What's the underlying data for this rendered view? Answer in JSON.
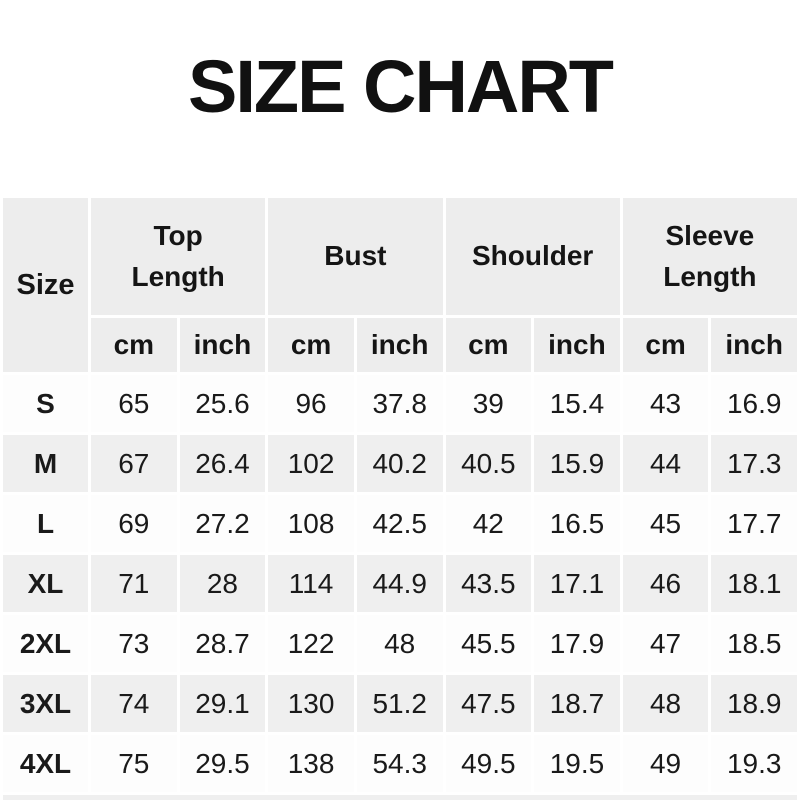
{
  "page": {
    "title": "SIZE CHART"
  },
  "colors": {
    "page-bg": "#ffffff",
    "title-color": "#111111",
    "header-bg": "#ededed",
    "row-light-bg": "#fdfdfd",
    "row-alt-bg": "#efefef",
    "divider": "#ffffff",
    "text": "#1a1a1a"
  },
  "table": {
    "size_column_label": "Size",
    "unit_labels": [
      "cm",
      "inch"
    ],
    "groups": [
      {
        "id": "top-length",
        "label": "Top Length"
      },
      {
        "id": "bust",
        "label": "Bust"
      },
      {
        "id": "shoulder",
        "label": "Shoulder"
      },
      {
        "id": "sleeve-length",
        "label": "Sleeve Length"
      }
    ],
    "rows": [
      {
        "size": "S",
        "values": [
          "65",
          "25.6",
          "96",
          "37.8",
          "39",
          "15.4",
          "43",
          "16.9"
        ]
      },
      {
        "size": "M",
        "values": [
          "67",
          "26.4",
          "102",
          "40.2",
          "40.5",
          "15.9",
          "44",
          "17.3"
        ]
      },
      {
        "size": "L",
        "values": [
          "69",
          "27.2",
          "108",
          "42.5",
          "42",
          "16.5",
          "45",
          "17.7"
        ]
      },
      {
        "size": "XL",
        "values": [
          "71",
          "28",
          "114",
          "44.9",
          "43.5",
          "17.1",
          "46",
          "18.1"
        ]
      },
      {
        "size": "2XL",
        "values": [
          "73",
          "28.7",
          "122",
          "48",
          "45.5",
          "17.9",
          "47",
          "18.5"
        ]
      },
      {
        "size": "3XL",
        "values": [
          "74",
          "29.1",
          "130",
          "51.2",
          "47.5",
          "18.7",
          "48",
          "18.9"
        ]
      },
      {
        "size": "4XL",
        "values": [
          "75",
          "29.5",
          "138",
          "54.3",
          "49.5",
          "19.5",
          "49",
          "19.3"
        ]
      }
    ]
  },
  "chart_data": {
    "type": "table",
    "title": "SIZE CHART",
    "column_groups": [
      "Size",
      "Top Length",
      "Bust",
      "Shoulder",
      "Sleeve Length"
    ],
    "columns": [
      "Size",
      "Top Length cm",
      "Top Length inch",
      "Bust cm",
      "Bust inch",
      "Shoulder cm",
      "Shoulder inch",
      "Sleeve Length cm",
      "Sleeve Length inch"
    ],
    "rows": [
      [
        "S",
        65,
        25.6,
        96,
        37.8,
        39,
        15.4,
        43,
        16.9
      ],
      [
        "M",
        67,
        26.4,
        102,
        40.2,
        40.5,
        15.9,
        44,
        17.3
      ],
      [
        "L",
        69,
        27.2,
        108,
        42.5,
        42,
        16.5,
        45,
        17.7
      ],
      [
        "XL",
        71,
        28,
        114,
        44.9,
        43.5,
        17.1,
        46,
        18.1
      ],
      [
        "2XL",
        73,
        28.7,
        122,
        48,
        45.5,
        17.9,
        47,
        18.5
      ],
      [
        "3XL",
        74,
        29.1,
        130,
        51.2,
        47.5,
        18.7,
        48,
        18.9
      ],
      [
        "4XL",
        75,
        29.5,
        138,
        54.3,
        49.5,
        19.5,
        49,
        19.3
      ]
    ]
  }
}
